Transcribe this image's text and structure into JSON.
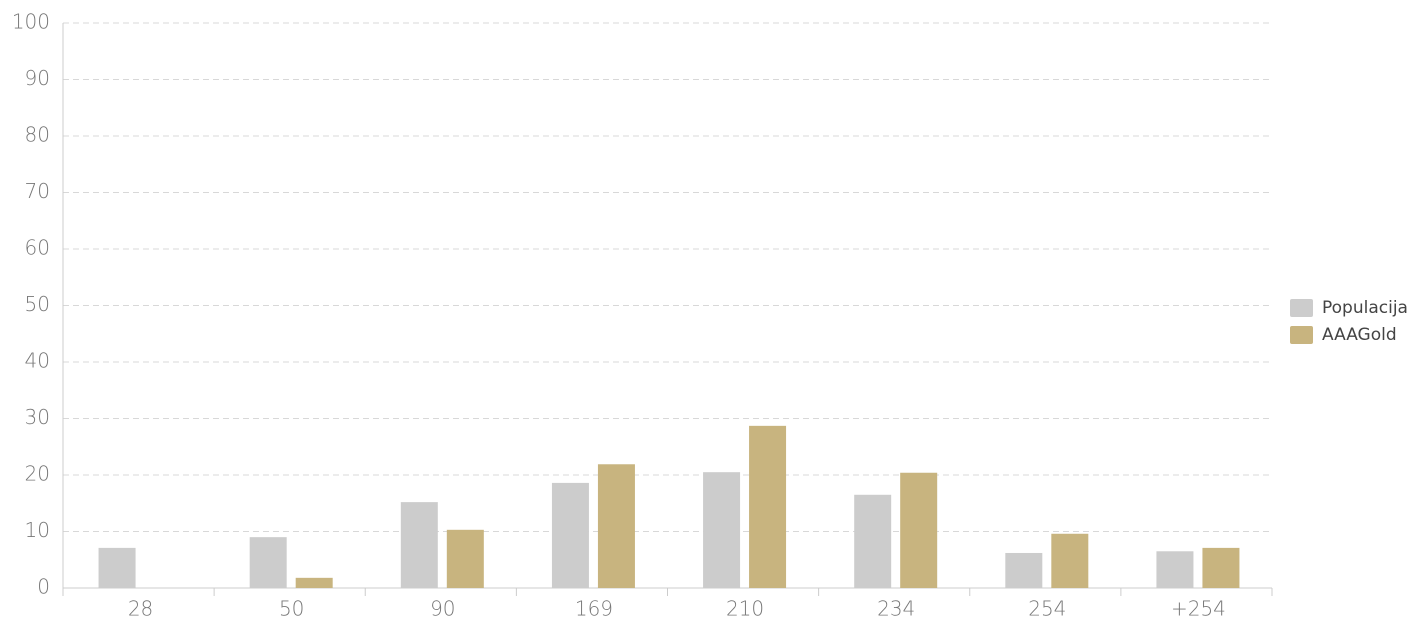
{
  "chart_data": {
    "type": "bar",
    "categories": [
      "28",
      "50",
      "90",
      "169",
      "210",
      "234",
      "254",
      "+254"
    ],
    "series": [
      {
        "name": "Populacija",
        "color": "#cccccc",
        "values": [
          7.1,
          9.0,
          15.2,
          18.6,
          20.5,
          16.5,
          6.2,
          6.5
        ]
      },
      {
        "name": "AAAGold",
        "color": "#c8b47f",
        "values": [
          0,
          1.8,
          10.3,
          21.9,
          28.7,
          20.4,
          9.6,
          7.1
        ]
      }
    ],
    "ylim": [
      0,
      100
    ],
    "yticks": [
      0,
      10,
      20,
      30,
      40,
      50,
      60,
      70,
      80,
      90,
      100
    ],
    "grid": true,
    "legend": "right"
  }
}
